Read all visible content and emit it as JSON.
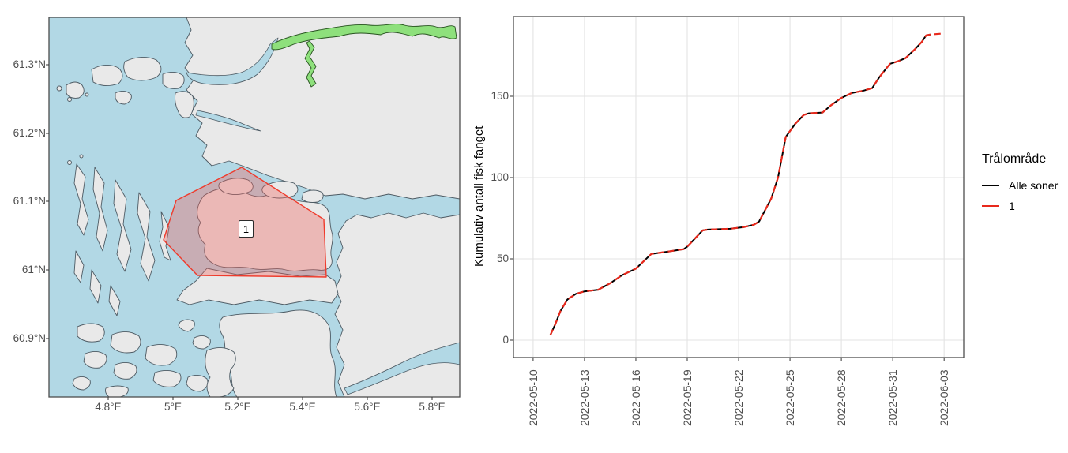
{
  "map": {
    "y_tick_labels": [
      "61.3°N",
      "61.2°N",
      "61.1°N",
      "61°N",
      "60.9°N"
    ],
    "x_tick_labels": [
      "4.8°E",
      "5°E",
      "5.2°E",
      "5.4°E",
      "5.6°E",
      "5.8°E"
    ],
    "zone_label": "1",
    "colors": {
      "sea": "#B2D8E5",
      "land": "#E9E9E9",
      "coast": "#4D5A63",
      "river_fill": "#8EE07C",
      "river_stroke": "#27521F",
      "zone_fill": "rgba(240,95,90,0.35)",
      "zone_stroke": "#EF3B2C"
    }
  },
  "chart": {
    "ylabel": "Kumulativ antall fisk fanget",
    "y_tick_labels": [
      "0",
      "50",
      "100",
      "150"
    ],
    "x_tick_labels": [
      "2022-05-10",
      "2022-05-13",
      "2022-05-16",
      "2022-05-19",
      "2022-05-22",
      "2022-05-25",
      "2022-05-28",
      "2022-05-31",
      "2022-06-03"
    ],
    "grid_color": "#E3E3E3",
    "legend": {
      "title": "Trålområde",
      "items": [
        {
          "label": "Alle soner",
          "color": "#000000"
        },
        {
          "label": "1",
          "color": "#E8291C"
        }
      ]
    }
  },
  "chart_data": {
    "type": "line",
    "title": "",
    "xlabel": "",
    "ylabel": "Kumulativ antall fisk fanget",
    "x_unit": "days since 2022-05-10",
    "x_range": [
      "2022-05-10",
      "2022-06-03"
    ],
    "x_tick_labels": [
      "2022-05-10",
      "2022-05-13",
      "2022-05-16",
      "2022-05-19",
      "2022-05-22",
      "2022-05-25",
      "2022-05-28",
      "2022-05-31",
      "2022-06-03"
    ],
    "ylim": [
      0,
      195
    ],
    "y_ticks": [
      0,
      50,
      100,
      150
    ],
    "grid": "major",
    "legend_title": "Trålområde",
    "legend_position": "right",
    "series": [
      {
        "name": "Alle soner",
        "color": "#000000",
        "linestyle": "solid",
        "points": [
          [
            1,
            3
          ],
          [
            1.3,
            10
          ],
          [
            1.6,
            18
          ],
          [
            2,
            25
          ],
          [
            2.5,
            28.5
          ],
          [
            3,
            30
          ],
          [
            3.8,
            31
          ],
          [
            4.5,
            35
          ],
          [
            5.2,
            40
          ],
          [
            6,
            44
          ],
          [
            6.9,
            53
          ],
          [
            7.9,
            54.5
          ],
          [
            8.8,
            56
          ],
          [
            9,
            57.5
          ],
          [
            9.9,
            67.5
          ],
          [
            10.2,
            68
          ],
          [
            11.5,
            68.5
          ],
          [
            12.3,
            69.5
          ],
          [
            12.9,
            71
          ],
          [
            13.2,
            73
          ],
          [
            13.9,
            87
          ],
          [
            14.3,
            100
          ],
          [
            14.75,
            125
          ],
          [
            15.3,
            133
          ],
          [
            15.8,
            138.5
          ],
          [
            16.1,
            139.5
          ],
          [
            16.9,
            140
          ],
          [
            17.4,
            144.5
          ],
          [
            18,
            149
          ],
          [
            18.6,
            152
          ],
          [
            19.3,
            153.5
          ],
          [
            19.8,
            155
          ],
          [
            20.2,
            161.5
          ],
          [
            20.65,
            167.5
          ],
          [
            20.85,
            170
          ],
          [
            21.3,
            171.5
          ],
          [
            21.75,
            173.5
          ],
          [
            22.3,
            179
          ],
          [
            22.7,
            183.5
          ],
          [
            22.95,
            187.5
          ],
          [
            23.2,
            188
          ]
        ]
      },
      {
        "name": "1",
        "color": "#E8291C",
        "linestyle": "dashed",
        "points": [
          [
            1,
            3
          ],
          [
            1.3,
            10
          ],
          [
            1.6,
            18
          ],
          [
            2,
            25
          ],
          [
            2.5,
            28.5
          ],
          [
            3,
            30
          ],
          [
            3.8,
            31
          ],
          [
            4.5,
            35
          ],
          [
            5.2,
            40
          ],
          [
            6,
            44
          ],
          [
            6.9,
            53
          ],
          [
            7.9,
            54.5
          ],
          [
            8.8,
            56
          ],
          [
            9,
            57.5
          ],
          [
            9.9,
            67.5
          ],
          [
            10.2,
            68
          ],
          [
            11.5,
            68.5
          ],
          [
            12.3,
            69.5
          ],
          [
            12.9,
            71
          ],
          [
            13.2,
            73
          ],
          [
            13.9,
            87
          ],
          [
            14.3,
            100
          ],
          [
            14.75,
            125
          ],
          [
            15.3,
            133
          ],
          [
            15.8,
            138.5
          ],
          [
            16.1,
            139.5
          ],
          [
            16.9,
            140
          ],
          [
            17.4,
            144.5
          ],
          [
            18,
            149
          ],
          [
            18.6,
            152
          ],
          [
            19.3,
            153.5
          ],
          [
            19.8,
            155
          ],
          [
            20.2,
            161.5
          ],
          [
            20.65,
            167.5
          ],
          [
            20.85,
            170
          ],
          [
            21.3,
            171.5
          ],
          [
            21.75,
            173.5
          ],
          [
            22.3,
            179
          ],
          [
            22.7,
            183.5
          ],
          [
            22.95,
            187.5
          ],
          [
            23.2,
            188
          ],
          [
            23.8,
            188.5
          ]
        ]
      }
    ]
  }
}
